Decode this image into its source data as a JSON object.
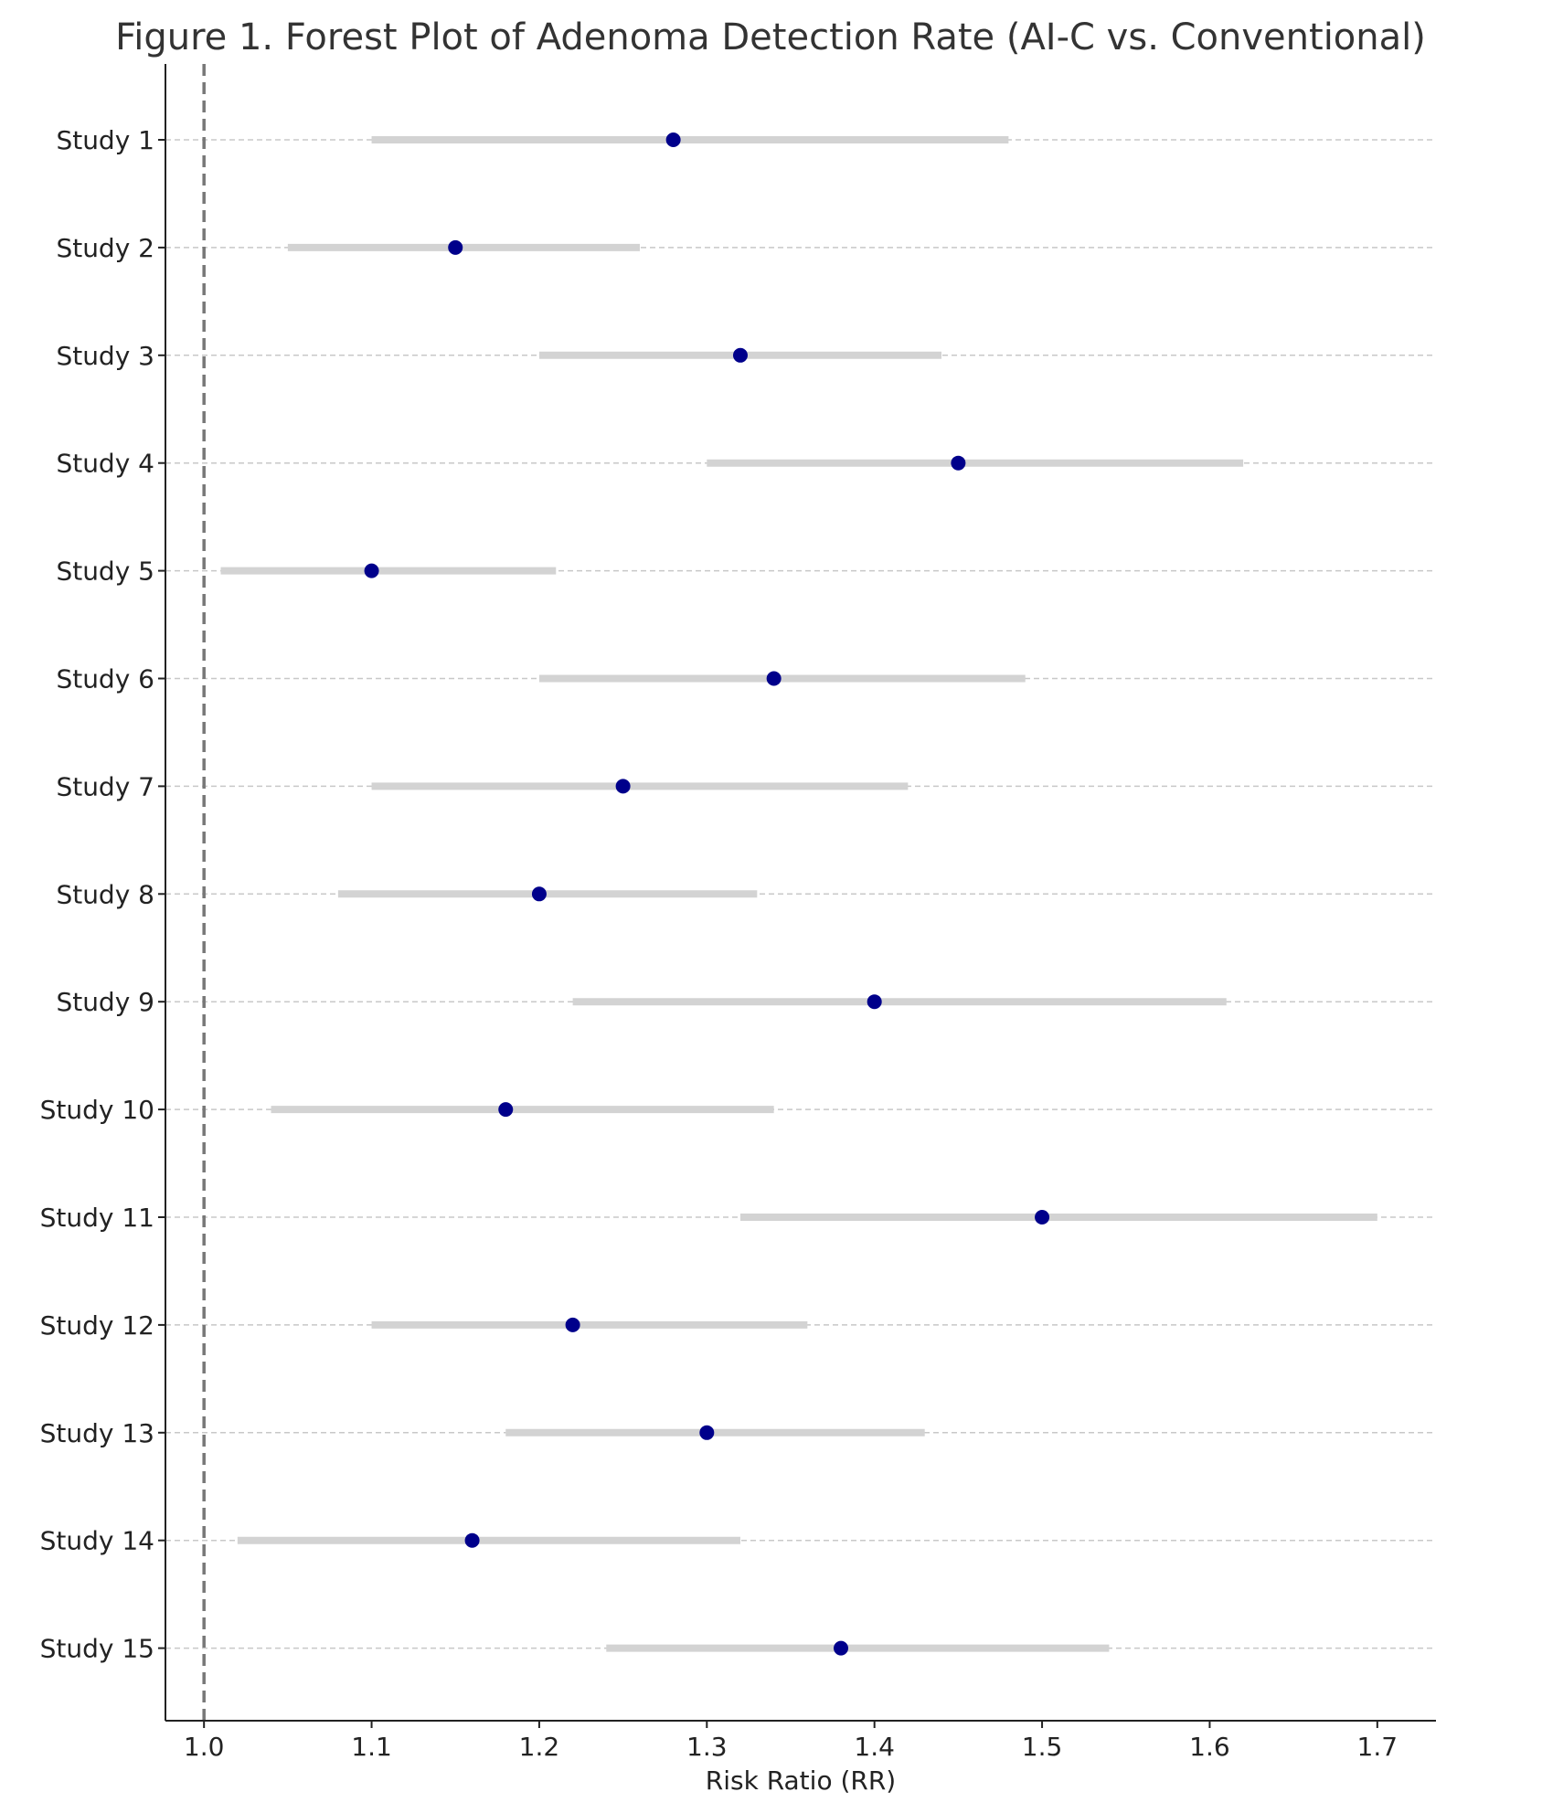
{
  "chart_data": {
    "type": "forest",
    "title": "Figure 1. Forest Plot of Adenoma Detection Rate (AI-C vs. Conventional)",
    "xlabel": "Risk Ratio (RR)",
    "ylabel": "",
    "xlim": [
      0.977,
      1.735
    ],
    "xticks": [
      "1.0",
      "1.1",
      "1.2",
      "1.3",
      "1.4",
      "1.5",
      "1.6",
      "1.7"
    ],
    "reference_line": 1.0,
    "grid": "horizontal dashed",
    "colors": {
      "point": "#00008b",
      "ci": "#d3d3d3",
      "reference": "#777777",
      "grid": "#c8c8c8"
    },
    "studies": [
      {
        "label": "Study 1",
        "rr": 1.28,
        "ci_low": 1.1,
        "ci_high": 1.48
      },
      {
        "label": "Study 2",
        "rr": 1.15,
        "ci_low": 1.05,
        "ci_high": 1.26
      },
      {
        "label": "Study 3",
        "rr": 1.32,
        "ci_low": 1.2,
        "ci_high": 1.44
      },
      {
        "label": "Study 4",
        "rr": 1.45,
        "ci_low": 1.3,
        "ci_high": 1.62
      },
      {
        "label": "Study 5",
        "rr": 1.1,
        "ci_low": 1.01,
        "ci_high": 1.21
      },
      {
        "label": "Study 6",
        "rr": 1.34,
        "ci_low": 1.2,
        "ci_high": 1.49
      },
      {
        "label": "Study 7",
        "rr": 1.25,
        "ci_low": 1.1,
        "ci_high": 1.42
      },
      {
        "label": "Study 8",
        "rr": 1.2,
        "ci_low": 1.08,
        "ci_high": 1.33
      },
      {
        "label": "Study 9",
        "rr": 1.4,
        "ci_low": 1.22,
        "ci_high": 1.61
      },
      {
        "label": "Study 10",
        "rr": 1.18,
        "ci_low": 1.04,
        "ci_high": 1.34
      },
      {
        "label": "Study 11",
        "rr": 1.5,
        "ci_low": 1.32,
        "ci_high": 1.7
      },
      {
        "label": "Study 12",
        "rr": 1.22,
        "ci_low": 1.1,
        "ci_high": 1.36
      },
      {
        "label": "Study 13",
        "rr": 1.3,
        "ci_low": 1.18,
        "ci_high": 1.43
      },
      {
        "label": "Study 14",
        "rr": 1.16,
        "ci_low": 1.02,
        "ci_high": 1.32
      },
      {
        "label": "Study 15",
        "rr": 1.38,
        "ci_low": 1.24,
        "ci_high": 1.54
      }
    ]
  }
}
